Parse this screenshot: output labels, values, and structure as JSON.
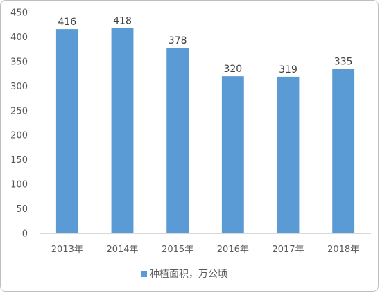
{
  "chart_data": {
    "type": "bar",
    "title": "",
    "xlabel": "",
    "ylabel": "",
    "categories": [
      "2013年",
      "2014年",
      "2015年",
      "2016年",
      "2017年",
      "2018年"
    ],
    "series": [
      {
        "name": "种植面积，万公顷",
        "values": [
          416,
          418,
          378,
          320,
          319,
          335
        ],
        "data_labels": [
          "416",
          "418",
          "378",
          "320",
          "319",
          "335"
        ],
        "color": "#5b9bd5"
      }
    ],
    "ylim": [
      0,
      450
    ],
    "yticks": [
      0,
      50,
      100,
      150,
      200,
      250,
      300,
      350,
      400,
      450
    ],
    "ytick_labels": [
      "0",
      "50",
      "100",
      "150",
      "200",
      "250",
      "300",
      "350",
      "400",
      "450"
    ],
    "grid": false,
    "legend": {
      "position": "bottom"
    }
  }
}
